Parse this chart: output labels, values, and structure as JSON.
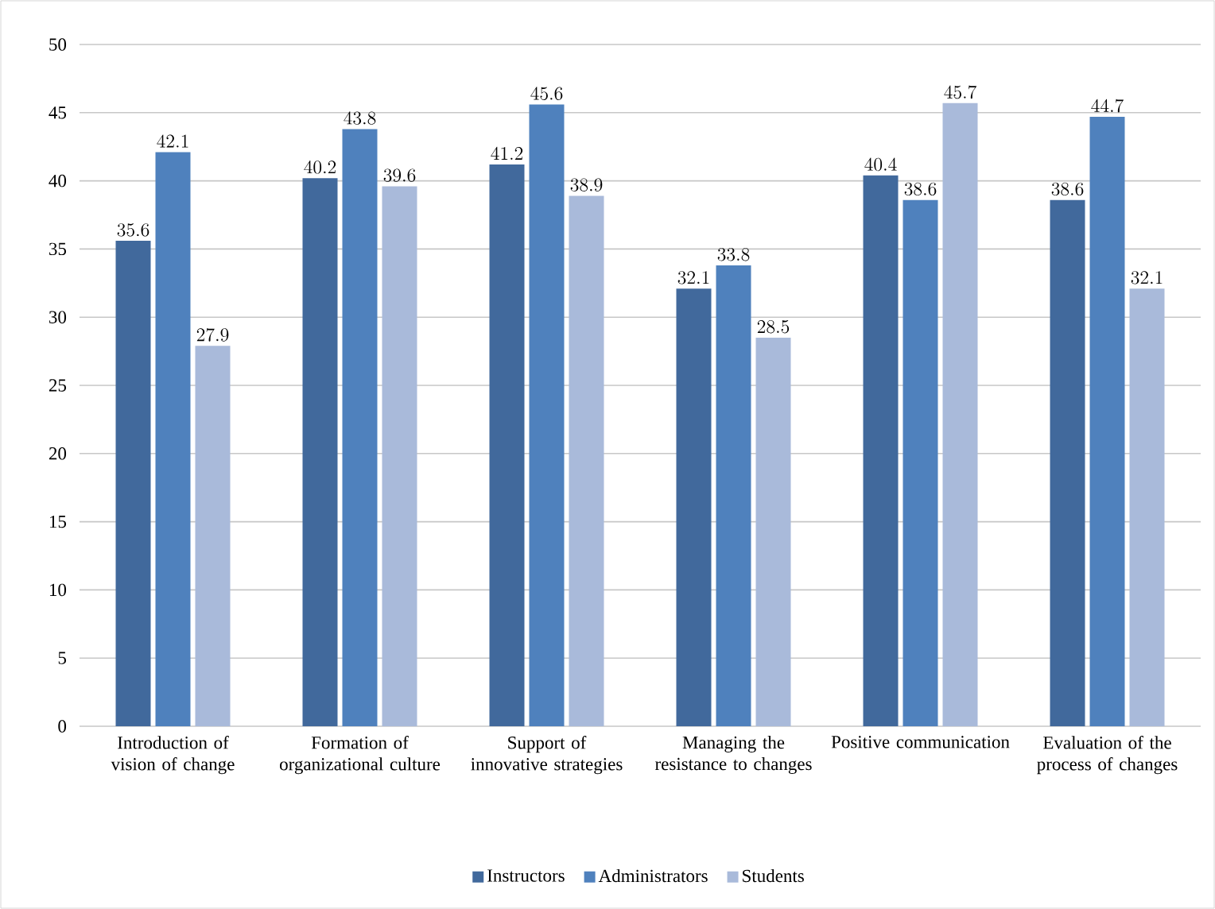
{
  "chart_data": {
    "type": "bar",
    "categories": [
      "Introduction of vision of change",
      "Formation of organizational culture",
      "Support of innovative strategies",
      "Managing the resistance to changes",
      "Positive communication",
      "Evaluation of the process of changes"
    ],
    "series": [
      {
        "name": "Instructors",
        "color": "#41699c",
        "values": [
          35.6,
          40.2,
          41.2,
          32.1,
          40.4,
          38.6
        ]
      },
      {
        "name": "Administrators",
        "color": "#4f81bd",
        "values": [
          42.1,
          43.8,
          45.6,
          33.8,
          38.6,
          44.7
        ]
      },
      {
        "name": "Students",
        "color": "#a9bada",
        "values": [
          27.9,
          39.6,
          38.9,
          28.5,
          45.7,
          32.1
        ]
      }
    ],
    "ylim": [
      0,
      50
    ],
    "yticks": [
      0,
      5,
      10,
      15,
      20,
      25,
      30,
      35,
      40,
      45,
      50
    ],
    "grid": "y",
    "legend": "bottom",
    "data_labels": true
  }
}
